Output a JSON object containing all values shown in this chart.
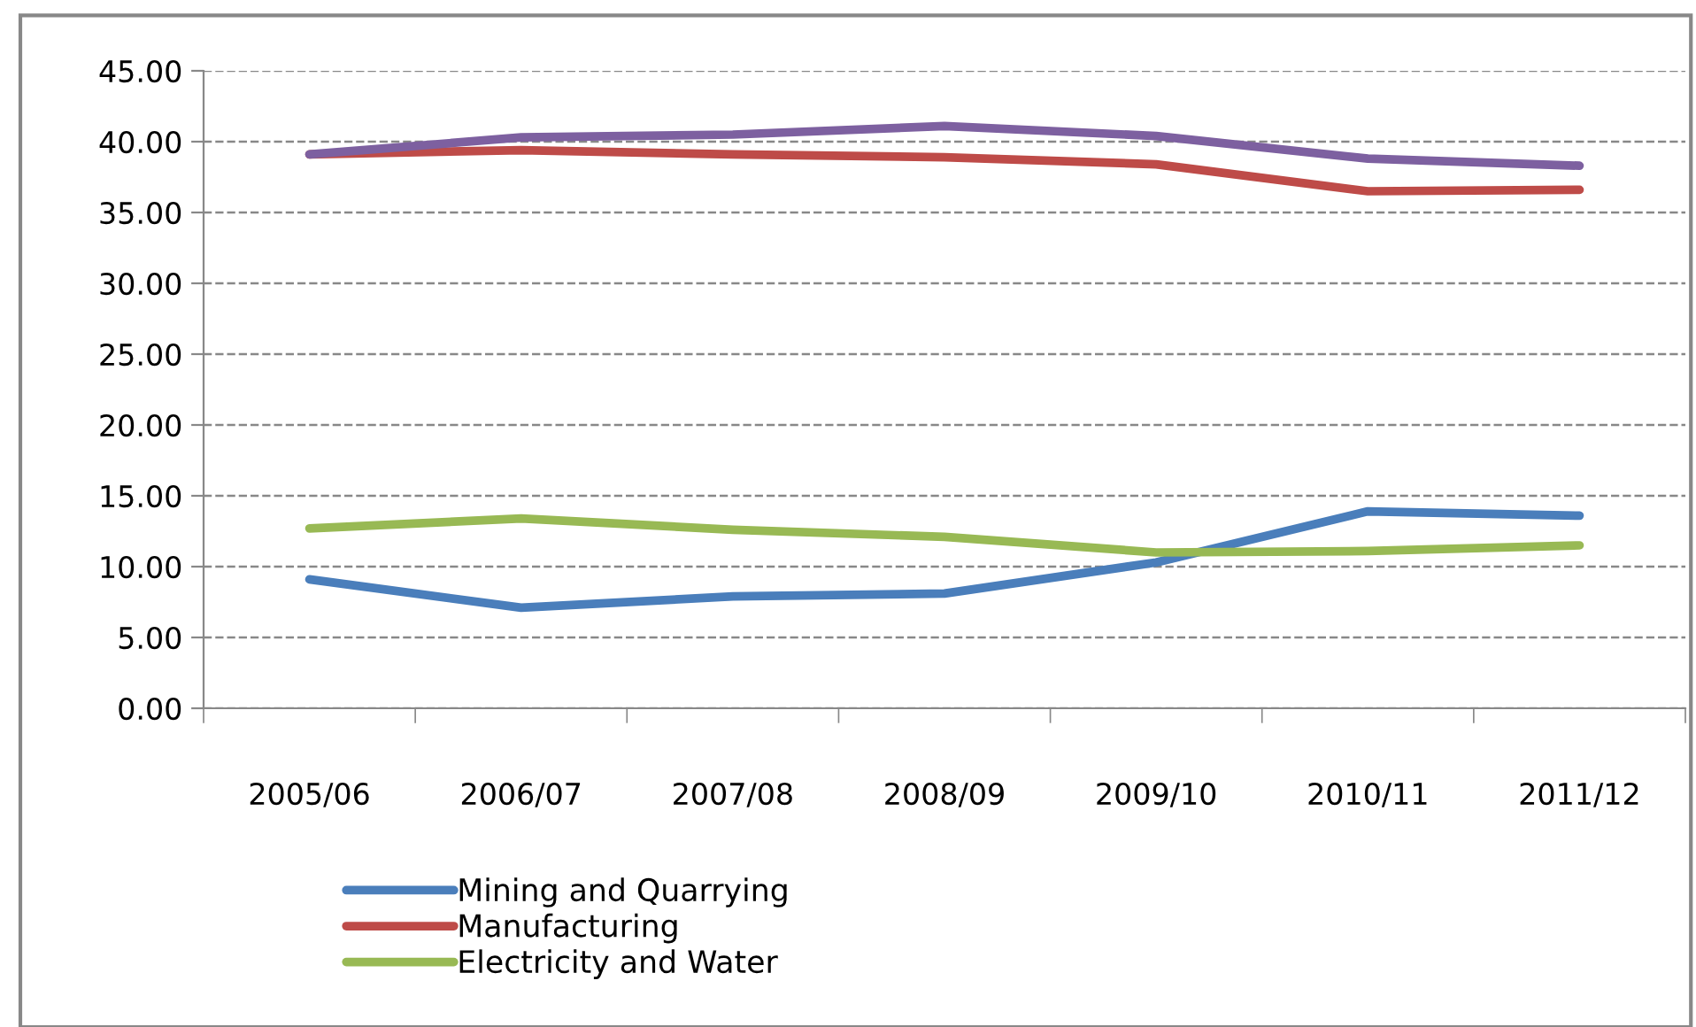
{
  "chart_data": {
    "type": "line",
    "categories": [
      "2005/06",
      "2006/07",
      "2007/08",
      "2008/09",
      "2009/10",
      "2010/11",
      "2011/12"
    ],
    "series": [
      {
        "name": "Mining and Quarrying",
        "color": "#4a7ebb",
        "values": [
          9.1,
          7.1,
          7.9,
          8.1,
          10.3,
          13.9,
          13.6
        ]
      },
      {
        "name": "Manufacturing",
        "color": "#be4b48",
        "values": [
          39.1,
          39.4,
          39.1,
          38.9,
          38.4,
          36.5,
          36.6
        ]
      },
      {
        "name": "Electricity and Water",
        "color": "#98b954",
        "values": [
          12.7,
          13.4,
          12.6,
          12.1,
          11.0,
          11.1,
          11.5
        ]
      },
      {
        "color": "#7d60a0",
        "values": [
          39.1,
          40.3,
          40.5,
          41.1,
          40.4,
          38.8,
          38.3
        ]
      }
    ],
    "ylim": [
      0,
      45
    ],
    "yticks": [
      {
        "value": 0,
        "label": "0.00"
      },
      {
        "value": 5,
        "label": "5.00"
      },
      {
        "value": 10,
        "label": "10.00"
      },
      {
        "value": 15,
        "label": "15.00"
      },
      {
        "value": 20,
        "label": "20.00"
      },
      {
        "value": 25,
        "label": "25.00"
      },
      {
        "value": 30,
        "label": "30.00"
      },
      {
        "value": 35,
        "label": "35.00"
      },
      {
        "value": 40,
        "label": "40.00"
      },
      {
        "value": 45,
        "label": "45.00"
      }
    ],
    "grid": "y",
    "legend": "bottom",
    "marker": "none",
    "line_style": "solid"
  }
}
